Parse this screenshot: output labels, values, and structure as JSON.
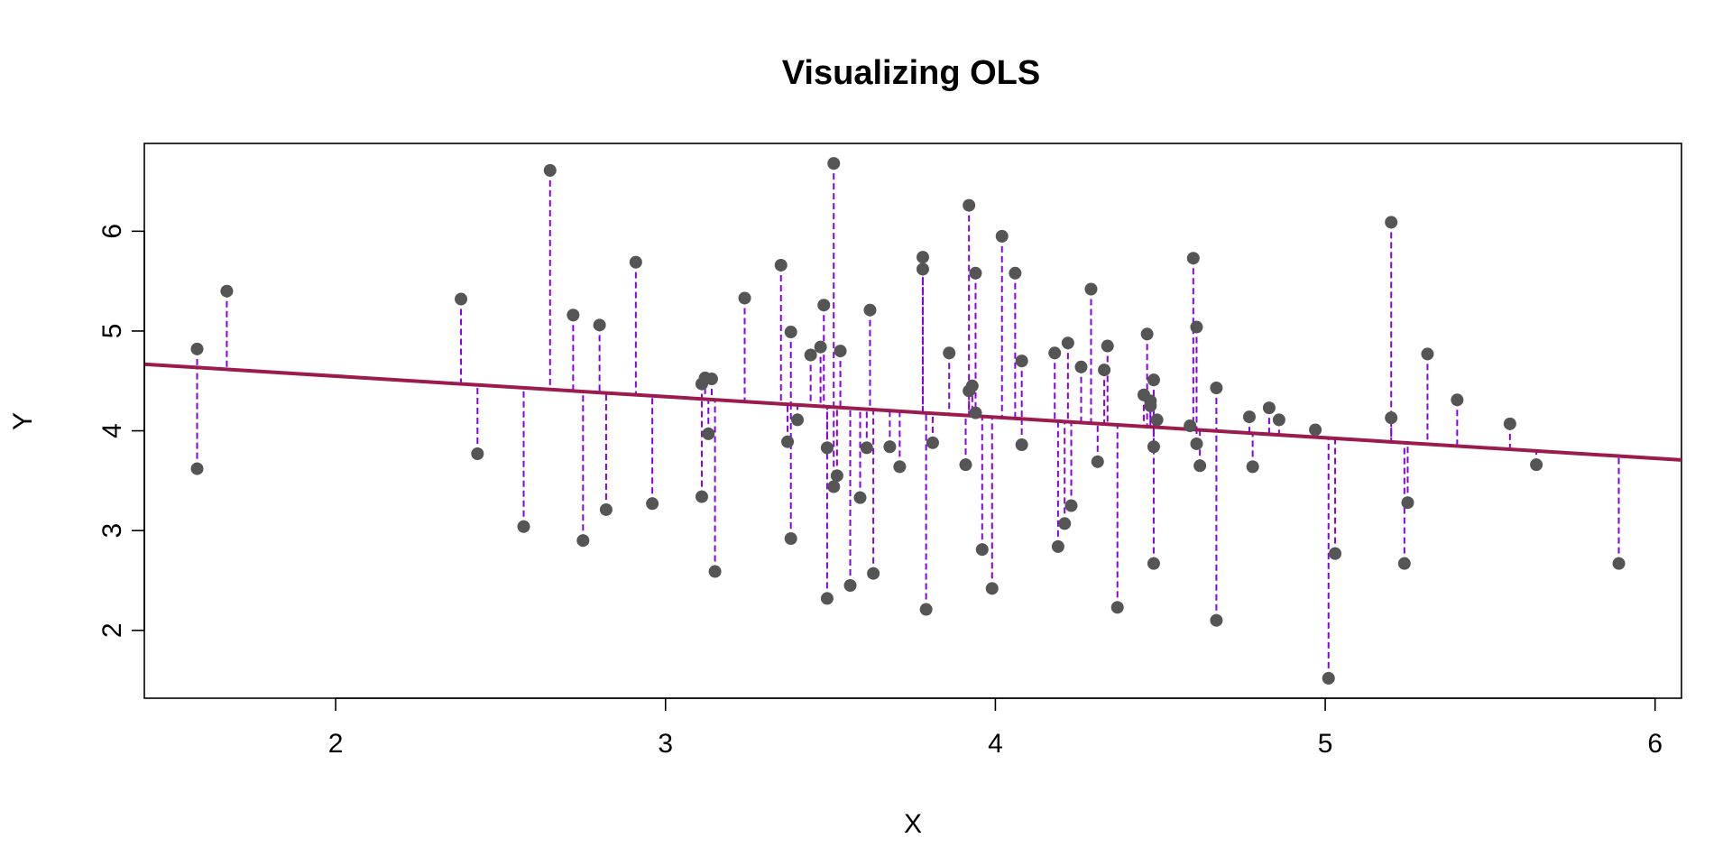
{
  "chart_data": {
    "type": "scatter",
    "title": "Visualizing OLS",
    "xlabel": "X",
    "ylabel": "Y",
    "xlim": [
      1.42,
      6.08
    ],
    "ylim": [
      1.32,
      6.88
    ],
    "xticks": [
      2,
      3,
      4,
      5,
      6
    ],
    "yticks": [
      2,
      3,
      4,
      5,
      6
    ],
    "grid": false,
    "regression_line": {
      "intercept": 4.96,
      "slope": -0.206,
      "color": "#9b1c4c"
    },
    "residual_color": "#8a00e6",
    "point_color": "#555555",
    "points": [
      {
        "x": 1.58,
        "y": 4.82
      },
      {
        "x": 1.58,
        "y": 3.62
      },
      {
        "x": 1.67,
        "y": 5.4
      },
      {
        "x": 2.38,
        "y": 5.32
      },
      {
        "x": 2.43,
        "y": 3.77
      },
      {
        "x": 2.57,
        "y": 3.04
      },
      {
        "x": 2.65,
        "y": 6.61
      },
      {
        "x": 2.72,
        "y": 5.16
      },
      {
        "x": 2.75,
        "y": 2.9
      },
      {
        "x": 2.8,
        "y": 5.06
      },
      {
        "x": 2.82,
        "y": 3.21
      },
      {
        "x": 2.91,
        "y": 5.69
      },
      {
        "x": 2.96,
        "y": 3.27
      },
      {
        "x": 3.11,
        "y": 4.47
      },
      {
        "x": 3.11,
        "y": 3.34
      },
      {
        "x": 3.12,
        "y": 4.53
      },
      {
        "x": 3.13,
        "y": 3.97
      },
      {
        "x": 3.14,
        "y": 4.52
      },
      {
        "x": 3.15,
        "y": 2.59
      },
      {
        "x": 3.24,
        "y": 5.33
      },
      {
        "x": 3.35,
        "y": 5.66
      },
      {
        "x": 3.37,
        "y": 3.89
      },
      {
        "x": 3.38,
        "y": 4.99
      },
      {
        "x": 3.38,
        "y": 2.92
      },
      {
        "x": 3.4,
        "y": 4.11
      },
      {
        "x": 3.44,
        "y": 4.76
      },
      {
        "x": 3.47,
        "y": 4.84
      },
      {
        "x": 3.48,
        "y": 5.26
      },
      {
        "x": 3.49,
        "y": 3.83
      },
      {
        "x": 3.49,
        "y": 2.32
      },
      {
        "x": 3.51,
        "y": 3.44
      },
      {
        "x": 3.51,
        "y": 6.68
      },
      {
        "x": 3.52,
        "y": 3.55
      },
      {
        "x": 3.53,
        "y": 4.8
      },
      {
        "x": 3.56,
        "y": 2.45
      },
      {
        "x": 3.59,
        "y": 3.33
      },
      {
        "x": 3.61,
        "y": 3.83
      },
      {
        "x": 3.62,
        "y": 5.21
      },
      {
        "x": 3.63,
        "y": 2.57
      },
      {
        "x": 3.68,
        "y": 3.84
      },
      {
        "x": 3.71,
        "y": 3.64
      },
      {
        "x": 3.78,
        "y": 5.74
      },
      {
        "x": 3.78,
        "y": 5.62
      },
      {
        "x": 3.79,
        "y": 2.21
      },
      {
        "x": 3.81,
        "y": 3.88
      },
      {
        "x": 3.86,
        "y": 4.78
      },
      {
        "x": 3.91,
        "y": 3.66
      },
      {
        "x": 3.92,
        "y": 6.26
      },
      {
        "x": 3.92,
        "y": 4.4
      },
      {
        "x": 3.93,
        "y": 4.45
      },
      {
        "x": 3.94,
        "y": 5.58
      },
      {
        "x": 3.94,
        "y": 4.18
      },
      {
        "x": 3.96,
        "y": 2.81
      },
      {
        "x": 3.99,
        "y": 2.42
      },
      {
        "x": 4.02,
        "y": 5.95
      },
      {
        "x": 4.06,
        "y": 5.58
      },
      {
        "x": 4.08,
        "y": 4.7
      },
      {
        "x": 4.08,
        "y": 3.86
      },
      {
        "x": 4.18,
        "y": 4.78
      },
      {
        "x": 4.19,
        "y": 2.84
      },
      {
        "x": 4.21,
        "y": 3.07
      },
      {
        "x": 4.22,
        "y": 4.88
      },
      {
        "x": 4.23,
        "y": 3.25
      },
      {
        "x": 4.26,
        "y": 4.64
      },
      {
        "x": 4.29,
        "y": 5.42
      },
      {
        "x": 4.31,
        "y": 3.69
      },
      {
        "x": 4.33,
        "y": 4.61
      },
      {
        "x": 4.34,
        "y": 4.85
      },
      {
        "x": 4.37,
        "y": 2.23
      },
      {
        "x": 4.45,
        "y": 4.36
      },
      {
        "x": 4.46,
        "y": 4.97
      },
      {
        "x": 4.47,
        "y": 4.3
      },
      {
        "x": 4.47,
        "y": 4.25
      },
      {
        "x": 4.48,
        "y": 4.51
      },
      {
        "x": 4.48,
        "y": 3.84
      },
      {
        "x": 4.48,
        "y": 2.67
      },
      {
        "x": 4.49,
        "y": 4.11
      },
      {
        "x": 4.59,
        "y": 4.05
      },
      {
        "x": 4.6,
        "y": 5.73
      },
      {
        "x": 4.61,
        "y": 5.04
      },
      {
        "x": 4.61,
        "y": 3.87
      },
      {
        "x": 4.62,
        "y": 3.65
      },
      {
        "x": 4.67,
        "y": 4.43
      },
      {
        "x": 4.67,
        "y": 2.1
      },
      {
        "x": 4.77,
        "y": 4.14
      },
      {
        "x": 4.78,
        "y": 3.64
      },
      {
        "x": 4.83,
        "y": 4.23
      },
      {
        "x": 4.86,
        "y": 4.11
      },
      {
        "x": 4.97,
        "y": 4.01
      },
      {
        "x": 5.01,
        "y": 1.52
      },
      {
        "x": 5.03,
        "y": 2.77
      },
      {
        "x": 5.2,
        "y": 6.09
      },
      {
        "x": 5.2,
        "y": 4.13
      },
      {
        "x": 5.24,
        "y": 2.67
      },
      {
        "x": 5.25,
        "y": 3.28
      },
      {
        "x": 5.31,
        "y": 4.77
      },
      {
        "x": 5.4,
        "y": 4.31
      },
      {
        "x": 5.56,
        "y": 4.07
      },
      {
        "x": 5.64,
        "y": 3.66
      },
      {
        "x": 5.89,
        "y": 2.67
      }
    ]
  }
}
